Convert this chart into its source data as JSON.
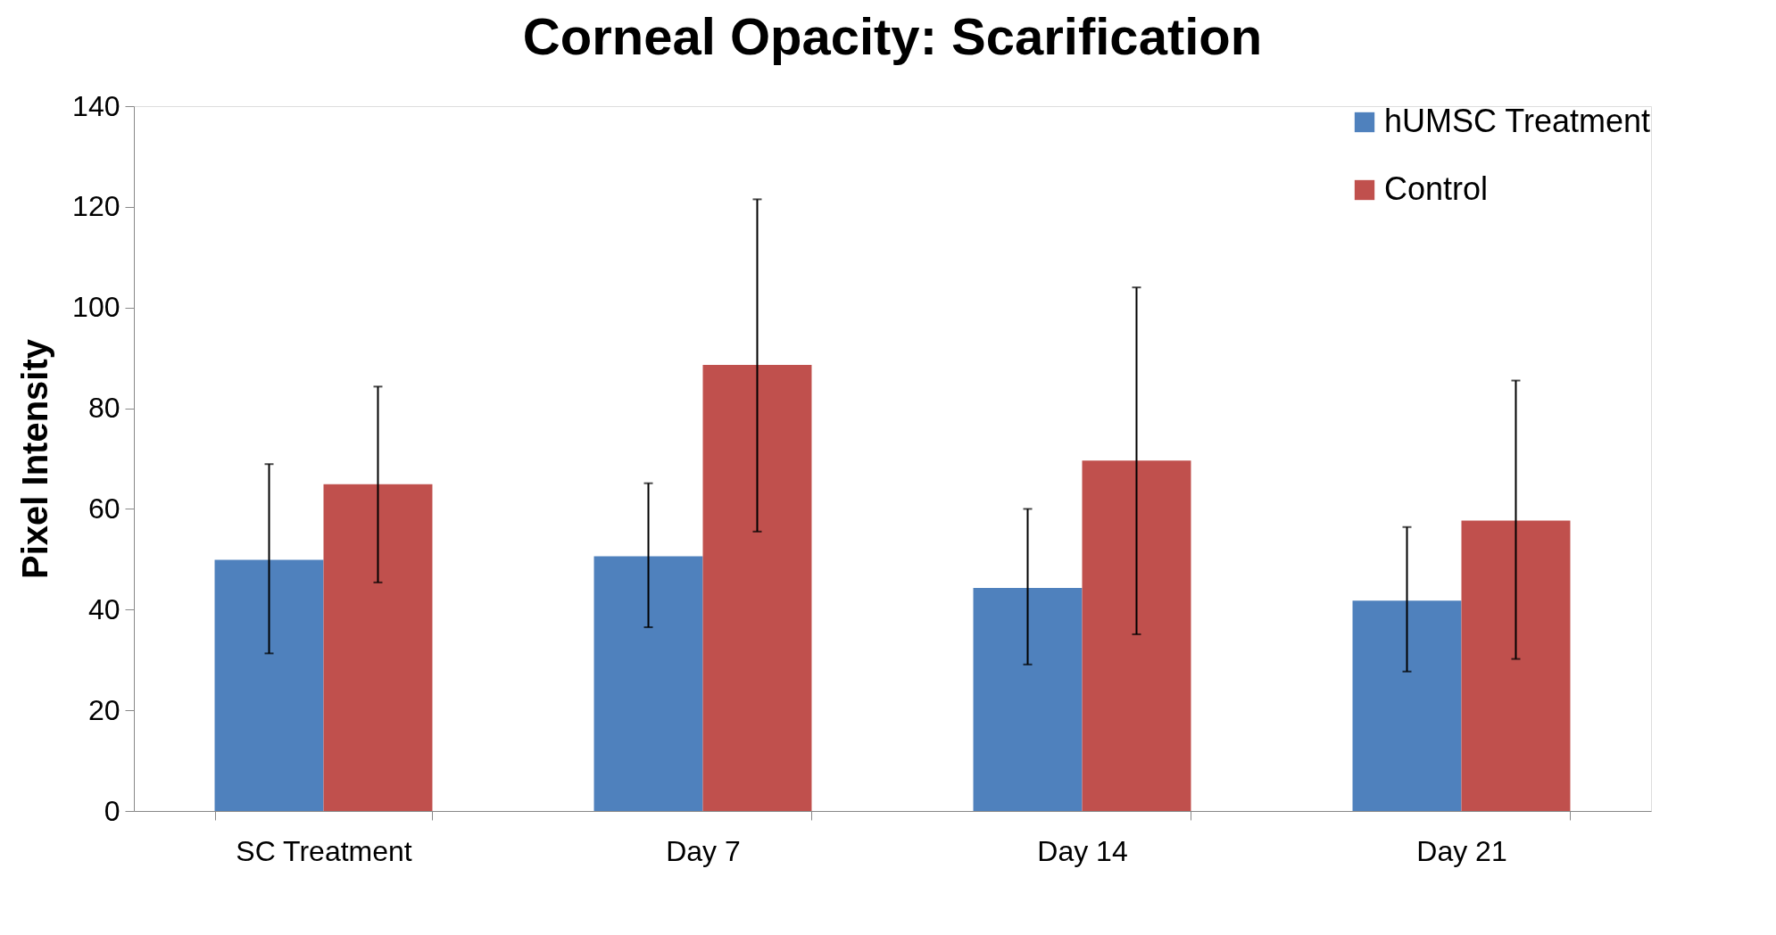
{
  "chart_data": {
    "type": "bar",
    "title": "Corneal Opacity: Scarification",
    "ylabel": "Pixel Intensity",
    "categories": [
      "SC Treatment",
      "Day 7",
      "Day 14",
      "Day 21"
    ],
    "series": [
      {
        "name": "hUMSC Treatment",
        "color": "#4f81bd",
        "values": [
          49.9,
          50.6,
          44.3,
          41.8
        ],
        "errors": [
          [
            31.3,
            68.9
          ],
          [
            36.5,
            65.1
          ],
          [
            29.1,
            60.0
          ],
          [
            27.7,
            56.4
          ]
        ]
      },
      {
        "name": "Control",
        "color": "#c0504d",
        "values": [
          64.9,
          88.6,
          69.6,
          57.7
        ],
        "errors": [
          [
            45.4,
            84.3
          ],
          [
            55.5,
            121.5
          ],
          [
            35.1,
            104.0
          ],
          [
            30.2,
            85.5
          ]
        ]
      }
    ],
    "ylim": [
      0,
      140
    ],
    "yticks": [
      0,
      20,
      40,
      60,
      80,
      100,
      120,
      140
    ],
    "grid": false,
    "legend": "top right"
  }
}
